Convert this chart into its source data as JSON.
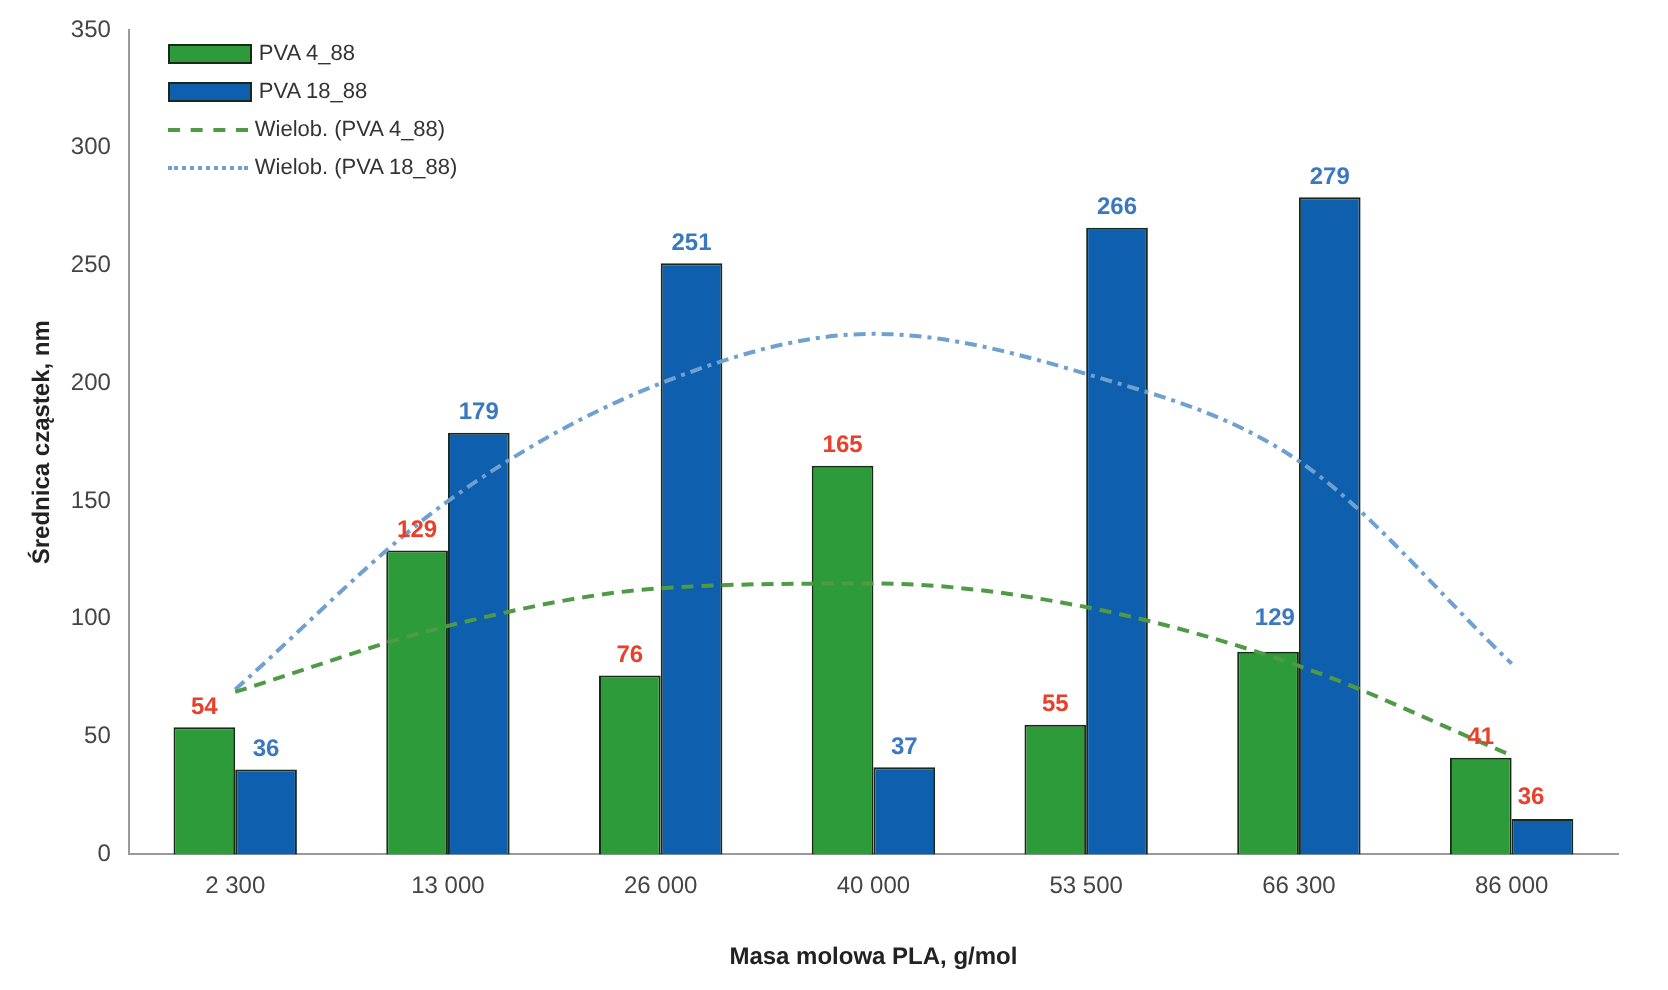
{
  "chart_data": {
    "type": "bar",
    "xlabel": "Masa molowa PLA, g/mol",
    "ylabel": "Średnica cząstek, nm",
    "categories": [
      "2 300",
      "13 000",
      "26 000",
      "40 000",
      "53 500",
      "66 300",
      "86 000"
    ],
    "series": [
      {
        "name": "PVA 4_88",
        "color": "#2e9b3a",
        "values": [
          54,
          129,
          76,
          165,
          55,
          86,
          41
        ],
        "value_labels": [
          "54",
          "129",
          "76",
          "165",
          "55",
          null,
          "41"
        ]
      },
      {
        "name": "PVA 18_88",
        "color": "#0e5fae",
        "values": [
          36,
          179,
          251,
          37,
          266,
          279,
          15
        ],
        "value_labels": [
          "36",
          "179",
          "251",
          "37",
          "266",
          "279",
          null
        ]
      },
      {
        "name": "Wielob. (PVA 4_88)",
        "type": "line",
        "color": "#4f9a45",
        "line_style": "dashed",
        "marker": "none",
        "values": [
          69,
          97,
          113,
          115,
          105,
          80,
          42
        ]
      },
      {
        "name": "Wielob. (PVA 18_88)",
        "type": "line",
        "color": "#6fa0d0",
        "line_style": "dotted",
        "marker": "none",
        "values": [
          70,
          150,
          200,
          221,
          204,
          167,
          81
        ]
      }
    ],
    "ylim": [
      0,
      350
    ],
    "yticks": [
      0,
      50,
      100,
      150,
      200,
      250,
      300,
      350
    ],
    "annotations": [
      {
        "text": "129",
        "x": "66 300",
        "y": 100
      },
      {
        "text": "36",
        "x": "86 000",
        "y": 24
      }
    ],
    "grid": false,
    "legend": "top left"
  }
}
